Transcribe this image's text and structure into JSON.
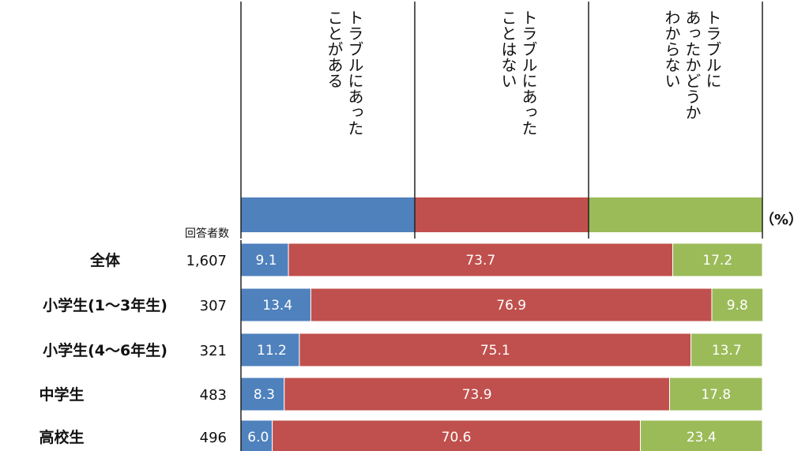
{
  "chart_data": {
    "type": "bar",
    "orientation": "horizontal",
    "stacked": true,
    "unit": "（%）",
    "count_header": "回答者数",
    "xlim": [
      0,
      100
    ],
    "series": [
      {
        "name": "トラブルにあったことがある",
        "name_lines": [
          "トラブルにあった",
          "ことがある"
        ],
        "color": "#4f81bd"
      },
      {
        "name": "トラブルにあったことはない",
        "name_lines": [
          "トラブルにあった",
          "ことはない"
        ],
        "color": "#c0504d"
      },
      {
        "name": "トラブルにあったかどうかわからない",
        "name_lines": [
          "トラブルに",
          "あったかどうか",
          "わからない"
        ],
        "color": "#9bbb59"
      }
    ],
    "categories": [
      {
        "label": "全体",
        "count": "1,607",
        "values": [
          9.1,
          73.7,
          17.2
        ]
      },
      {
        "label": "小学生(1～3年生)",
        "count": "307",
        "values": [
          13.4,
          76.9,
          9.8
        ]
      },
      {
        "label": "小学生(4～6年生)",
        "count": "321",
        "values": [
          11.2,
          75.1,
          13.7
        ]
      },
      {
        "label": "中学生",
        "count": "483",
        "values": [
          8.3,
          73.9,
          17.8
        ]
      },
      {
        "label": "高校生",
        "count": "496",
        "values": [
          6.0,
          70.6,
          23.4
        ]
      }
    ]
  }
}
